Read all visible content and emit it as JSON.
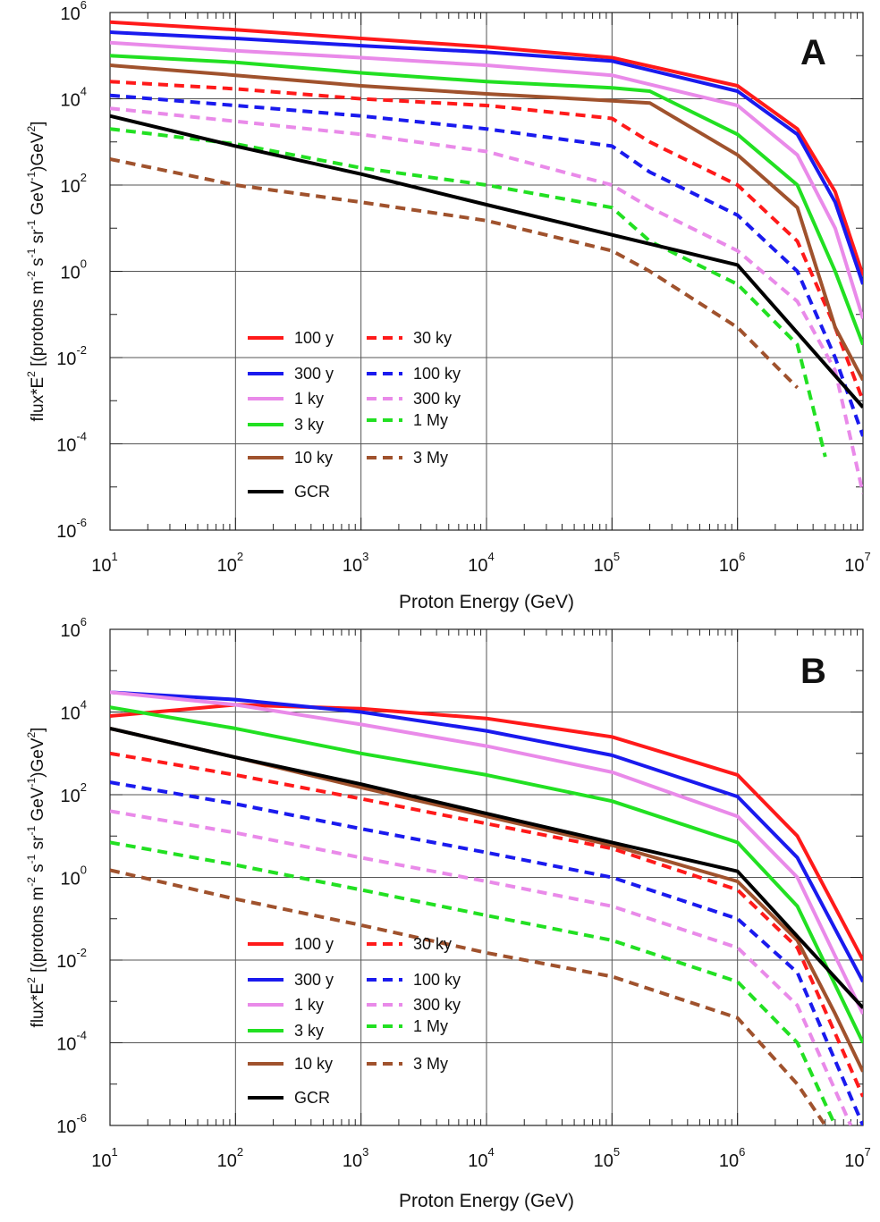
{
  "chart_data": [
    {
      "type": "line",
      "panel_label": "A",
      "xlabel": "Proton Energy (GeV)",
      "ylabel": "flux*E^2 [(protons m^-2 s^-1 sr^-1 GeV^-1)GeV^2]",
      "xscale": "log",
      "yscale": "log",
      "xlim": [
        10,
        10000000
      ],
      "ylim": [
        1e-06,
        1000000
      ],
      "grid": true,
      "legend_placement": "lower-left",
      "series": [
        {
          "name": "100 y",
          "color": "#ff1a1a",
          "style": "solid",
          "points": [
            [
              10,
              600000
            ],
            [
              100,
              400000
            ],
            [
              1000,
              250000
            ],
            [
              10000,
              160000
            ],
            [
              100000,
              90000
            ],
            [
              1000000,
              20000
            ],
            [
              3000000,
              2000
            ],
            [
              6000000,
              70
            ],
            [
              10000000,
              0.8
            ]
          ]
        },
        {
          "name": "300 y",
          "color": "#1a1aee",
          "style": "solid",
          "points": [
            [
              10,
              350000
            ],
            [
              100,
              250000
            ],
            [
              1000,
              170000
            ],
            [
              10000,
              120000
            ],
            [
              100000,
              75000
            ],
            [
              1000000,
              15000
            ],
            [
              3000000,
              1500
            ],
            [
              6000000,
              40
            ],
            [
              10000000,
              0.5
            ]
          ]
        },
        {
          "name": "1 ky",
          "color": "#e98ae9",
          "style": "solid",
          "points": [
            [
              10,
              200000
            ],
            [
              100,
              130000
            ],
            [
              1000,
              90000
            ],
            [
              10000,
              60000
            ],
            [
              100000,
              35000
            ],
            [
              1000000,
              7000
            ],
            [
              3000000,
              500
            ],
            [
              6000000,
              10
            ],
            [
              10000000,
              0.08
            ]
          ]
        },
        {
          "name": "3 ky",
          "color": "#22e022",
          "style": "solid",
          "points": [
            [
              10,
              100000
            ],
            [
              100,
              70000
            ],
            [
              1000,
              40000
            ],
            [
              10000,
              25000
            ],
            [
              100000,
              18000
            ],
            [
              200000,
              15000
            ],
            [
              1000000,
              1500
            ],
            [
              3000000,
              100
            ],
            [
              6000000,
              1
            ],
            [
              10000000,
              0.02
            ]
          ]
        },
        {
          "name": "10 ky",
          "color": "#a0522d",
          "style": "solid",
          "points": [
            [
              10,
              60000
            ],
            [
              100,
              35000
            ],
            [
              1000,
              20000
            ],
            [
              10000,
              13000
            ],
            [
              100000,
              9000
            ],
            [
              200000,
              8000
            ],
            [
              1000000,
              500
            ],
            [
              3000000,
              30
            ],
            [
              6000000,
              0.05
            ],
            [
              10000000,
              0.003
            ]
          ]
        },
        {
          "name": "GCR",
          "color": "#000000",
          "style": "solid",
          "points": [
            [
              10,
              4000
            ],
            [
              100,
              800
            ],
            [
              1000,
              180
            ],
            [
              10000,
              35
            ],
            [
              100000,
              7
            ],
            [
              1000000,
              1.4
            ],
            [
              10000000,
              0.0007
            ]
          ]
        },
        {
          "name": "30 ky",
          "color": "#ff1a1a",
          "style": "dashed",
          "points": [
            [
              10,
              25000
            ],
            [
              100,
              17000
            ],
            [
              1000,
              10000
            ],
            [
              10000,
              7000
            ],
            [
              100000,
              3500
            ],
            [
              200000,
              1000
            ],
            [
              1000000,
              100
            ],
            [
              3000000,
              5
            ],
            [
              6000000,
              0.05
            ],
            [
              10000000,
              0.001
            ]
          ]
        },
        {
          "name": "100 ky",
          "color": "#1a1aee",
          "style": "dashed",
          "points": [
            [
              10,
              12000
            ],
            [
              100,
              7000
            ],
            [
              1000,
              4000
            ],
            [
              10000,
              2000
            ],
            [
              100000,
              800
            ],
            [
              200000,
              200
            ],
            [
              1000000,
              20
            ],
            [
              3000000,
              1
            ],
            [
              6000000,
              0.01
            ],
            [
              10000000,
              0.00015
            ]
          ]
        },
        {
          "name": "300 ky",
          "color": "#e98ae9",
          "style": "dashed",
          "points": [
            [
              10,
              6000
            ],
            [
              100,
              3000
            ],
            [
              1000,
              1500
            ],
            [
              10000,
              600
            ],
            [
              100000,
              100
            ],
            [
              200000,
              30
            ],
            [
              1000000,
              3
            ],
            [
              3000000,
              0.2
            ],
            [
              6000000,
              0.005
            ],
            [
              10000000,
              7e-06
            ]
          ]
        },
        {
          "name": "1 My",
          "color": "#22e022",
          "style": "dashed",
          "points": [
            [
              10,
              2000
            ],
            [
              100,
              900
            ],
            [
              1000,
              250
            ],
            [
              10000,
              100
            ],
            [
              100000,
              30
            ],
            [
              200000,
              5
            ],
            [
              1000000,
              0.5
            ],
            [
              3000000,
              0.02
            ],
            [
              5000000,
              5e-05
            ]
          ]
        },
        {
          "name": "3 My",
          "color": "#a0522d",
          "style": "dashed",
          "points": [
            [
              10,
              400
            ],
            [
              100,
              100
            ],
            [
              1000,
              40
            ],
            [
              10000,
              15
            ],
            [
              100000,
              3
            ],
            [
              200000,
              1
            ],
            [
              1000000,
              0.05
            ],
            [
              3000000,
              0.002
            ]
          ]
        }
      ]
    },
    {
      "type": "line",
      "panel_label": "B",
      "xlabel": "Proton Energy (GeV)",
      "ylabel": "flux*E^2 [(protons m^-2 s^-1 sr^-1 GeV^-1)GeV^2]",
      "xscale": "log",
      "yscale": "log",
      "xlim": [
        10,
        10000000
      ],
      "ylim": [
        1e-06,
        1000000
      ],
      "grid": true,
      "legend_placement": "lower-left",
      "series": [
        {
          "name": "100 y",
          "color": "#ff1a1a",
          "style": "solid",
          "points": [
            [
              10,
              8000
            ],
            [
              100,
              15000
            ],
            [
              1000,
              12000
            ],
            [
              10000,
              7000
            ],
            [
              100000,
              2500
            ],
            [
              1000000,
              300
            ],
            [
              3000000,
              10
            ],
            [
              10000000,
              0.01
            ]
          ]
        },
        {
          "name": "300 y",
          "color": "#1a1aee",
          "style": "solid",
          "points": [
            [
              10,
              30000
            ],
            [
              100,
              20000
            ],
            [
              1000,
              10000
            ],
            [
              10000,
              3500
            ],
            [
              100000,
              900
            ],
            [
              1000000,
              90
            ],
            [
              3000000,
              3
            ],
            [
              10000000,
              0.003
            ]
          ]
        },
        {
          "name": "1 ky",
          "color": "#e98ae9",
          "style": "solid",
          "points": [
            [
              10,
              30000
            ],
            [
              100,
              15000
            ],
            [
              1000,
              5000
            ],
            [
              10000,
              1500
            ],
            [
              100000,
              350
            ],
            [
              1000000,
              30
            ],
            [
              3000000,
              1
            ],
            [
              10000000,
              0.0005
            ]
          ]
        },
        {
          "name": "3 ky",
          "color": "#22e022",
          "style": "solid",
          "points": [
            [
              10,
              13000
            ],
            [
              100,
              4000
            ],
            [
              1000,
              1000
            ],
            [
              10000,
              300
            ],
            [
              100000,
              70
            ],
            [
              1000000,
              7
            ],
            [
              3000000,
              0.2
            ],
            [
              10000000,
              0.0001
            ]
          ]
        },
        {
          "name": "10 ky",
          "color": "#a0522d",
          "style": "solid",
          "points": [
            [
              10,
              4000
            ],
            [
              100,
              800
            ],
            [
              1000,
              150
            ],
            [
              10000,
              30
            ],
            [
              100000,
              6
            ],
            [
              1000000,
              0.8
            ],
            [
              3000000,
              0.03
            ],
            [
              6000000,
              0.0005
            ],
            [
              10000000,
              2e-05
            ]
          ]
        },
        {
          "name": "GCR",
          "color": "#000000",
          "style": "solid",
          "points": [
            [
              10,
              4000
            ],
            [
              100,
              800
            ],
            [
              1000,
              180
            ],
            [
              10000,
              35
            ],
            [
              100000,
              7
            ],
            [
              1000000,
              1.4
            ],
            [
              10000000,
              0.0007
            ]
          ]
        },
        {
          "name": "30 ky",
          "color": "#ff1a1a",
          "style": "dashed",
          "points": [
            [
              10,
              1000
            ],
            [
              100,
              300
            ],
            [
              1000,
              80
            ],
            [
              10000,
              20
            ],
            [
              100000,
              5
            ],
            [
              1000000,
              0.5
            ],
            [
              3000000,
              0.02
            ],
            [
              10000000,
              5e-06
            ]
          ]
        },
        {
          "name": "100 ky",
          "color": "#1a1aee",
          "style": "dashed",
          "points": [
            [
              10,
              200
            ],
            [
              100,
              60
            ],
            [
              1000,
              15
            ],
            [
              10000,
              4
            ],
            [
              100000,
              1
            ],
            [
              1000000,
              0.1
            ],
            [
              3000000,
              0.005
            ],
            [
              10000000,
              1e-06
            ]
          ]
        },
        {
          "name": "300 ky",
          "color": "#e98ae9",
          "style": "dashed",
          "points": [
            [
              10,
              40
            ],
            [
              100,
              12
            ],
            [
              1000,
              3
            ],
            [
              10000,
              0.8
            ],
            [
              100000,
              0.2
            ],
            [
              1000000,
              0.02
            ],
            [
              3000000,
              0.0008
            ],
            [
              8000000,
              1e-06
            ]
          ]
        },
        {
          "name": "1 My",
          "color": "#22e022",
          "style": "dashed",
          "points": [
            [
              10,
              7
            ],
            [
              100,
              2
            ],
            [
              1000,
              0.5
            ],
            [
              10000,
              0.12
            ],
            [
              100000,
              0.03
            ],
            [
              1000000,
              0.003
            ],
            [
              3000000,
              0.0001
            ],
            [
              6000000,
              1e-06
            ]
          ]
        },
        {
          "name": "3 My",
          "color": "#a0522d",
          "style": "dashed",
          "points": [
            [
              10,
              1.5
            ],
            [
              100,
              0.3
            ],
            [
              1000,
              0.07
            ],
            [
              10000,
              0.015
            ],
            [
              100000,
              0.004
            ],
            [
              1000000,
              0.0004
            ],
            [
              3000000,
              1e-05
            ],
            [
              5000000,
              1e-06
            ]
          ]
        }
      ]
    }
  ]
}
